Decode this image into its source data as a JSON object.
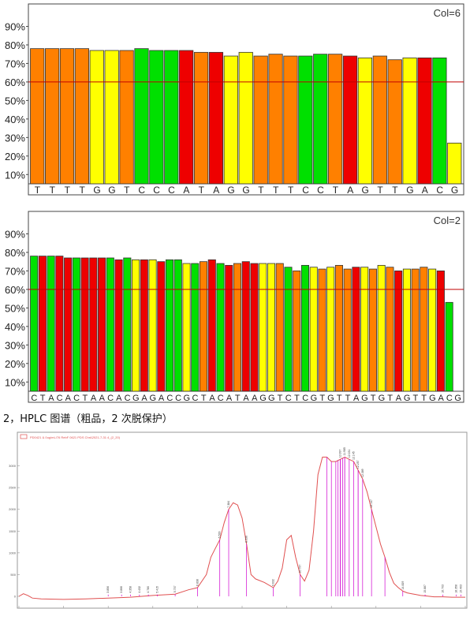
{
  "chart_data": [
    {
      "type": "bar",
      "annotation": "Col=6",
      "threshold": 60,
      "ylim": [
        5,
        100
      ],
      "yticks": [
        "10%",
        "20%",
        "30%",
        "40%",
        "50%",
        "60%",
        "70%",
        "80%",
        "90%"
      ],
      "categories": [
        "T",
        "T",
        "T",
        "T",
        "G",
        "G",
        "T",
        "C",
        "C",
        "C",
        "A",
        "T",
        "A",
        "G",
        "G",
        "T",
        "T",
        "T",
        "C",
        "C",
        "T",
        "A",
        "G",
        "T",
        "T",
        "G",
        "A",
        "C",
        "G"
      ],
      "values": [
        78,
        78,
        78,
        78,
        77,
        77,
        77,
        78,
        77,
        77,
        77,
        76,
        76,
        74,
        76,
        74,
        75,
        74,
        74,
        75,
        75,
        74,
        73,
        74,
        72,
        73,
        73,
        73,
        27
      ],
      "colors": [
        "#ff8000",
        "#ff8000",
        "#ff8000",
        "#ff8000",
        "#ffff00",
        "#ffff00",
        "#ff8000",
        "#00e000",
        "#00e000",
        "#00e000",
        "#ee0000",
        "#ff8000",
        "#ee0000",
        "#ffff00",
        "#ffff00",
        "#ff8000",
        "#ff8000",
        "#ff8000",
        "#00e000",
        "#00e000",
        "#ff8000",
        "#ee0000",
        "#ffff00",
        "#ff8000",
        "#ff8000",
        "#ffff00",
        "#ee0000",
        "#00e000",
        "#ffff00"
      ]
    },
    {
      "type": "bar",
      "annotation": "Col=2",
      "threshold": 60,
      "ylim": [
        5,
        100
      ],
      "yticks": [
        "10%",
        "20%",
        "30%",
        "40%",
        "50%",
        "60%",
        "70%",
        "80%",
        "90%"
      ],
      "categories": [
        "C",
        "T",
        "A",
        "C",
        "A",
        "C",
        "T",
        "A",
        "A",
        "C",
        "A",
        "C",
        "G",
        "A",
        "G",
        "A",
        "C",
        "C",
        "G",
        "C",
        "T",
        "A",
        "C",
        "A",
        "T",
        "A",
        "A",
        "G",
        "G",
        "T",
        "C",
        "T",
        "C",
        "G",
        "T",
        "G",
        "T",
        "T",
        "A",
        "G",
        "T",
        "G",
        "T",
        "A",
        "G",
        "T",
        "T",
        "G",
        "A",
        "C",
        "G"
      ],
      "values": [
        78,
        78,
        78,
        78,
        77,
        77,
        77,
        77,
        77,
        77,
        76,
        77,
        76,
        76,
        76,
        75,
        76,
        76,
        74,
        74,
        75,
        76,
        74,
        73,
        74,
        75,
        74,
        74,
        74,
        74,
        72,
        70,
        73,
        72,
        71,
        72,
        73,
        71,
        72,
        72,
        71,
        73,
        72,
        70,
        71,
        71,
        72,
        71,
        70,
        53,
        0
      ],
      "colors": [
        "#00e000",
        "#ee0000",
        "#00e000",
        "#ee0000",
        "#ee0000",
        "#00e000",
        "#ee0000",
        "#ee0000",
        "#ee0000",
        "#00e000",
        "#ee0000",
        "#00e000",
        "#ffff00",
        "#ee0000",
        "#ffff00",
        "#ee0000",
        "#00e000",
        "#00e000",
        "#ffff00",
        "#00e000",
        "#ff8000",
        "#ee0000",
        "#00e000",
        "#ee0000",
        "#ff8000",
        "#ee0000",
        "#ee0000",
        "#ffff00",
        "#ffff00",
        "#ff8000",
        "#00e000",
        "#ff8000",
        "#00e000",
        "#ffff00",
        "#ff8000",
        "#ffff00",
        "#ff8000",
        "#ff8000",
        "#ee0000",
        "#ffff00",
        "#ff8000",
        "#ffff00",
        "#ff8000",
        "#ee0000",
        "#ffff00",
        "#ff8000",
        "#ff8000",
        "#ffff00",
        "#ee0000",
        "#00e000",
        "#ffff00"
      ]
    },
    {
      "type": "line",
      "title": "",
      "line_color": "#e05050",
      "peak_color": "#d000d0",
      "xlim": [
        0,
        100
      ],
      "ylim": [
        0,
        3500
      ],
      "x": [
        0,
        1,
        2,
        3,
        5,
        10,
        15,
        20,
        25,
        30,
        35,
        38,
        40,
        42,
        43,
        44,
        45,
        46,
        47,
        48,
        49,
        50,
        51,
        52,
        53,
        55,
        57,
        58,
        59,
        60,
        61,
        62,
        63,
        64,
        65,
        66,
        67,
        68,
        69,
        70,
        71,
        72,
        73,
        74,
        75,
        76,
        77,
        78,
        79,
        80,
        81,
        82,
        83,
        84,
        85,
        86,
        87,
        88,
        89,
        90,
        91,
        92,
        93,
        95,
        97,
        100
      ],
      "y": [
        0,
        60,
        20,
        -40,
        -60,
        -70,
        -60,
        -40,
        -20,
        20,
        50,
        150,
        200,
        500,
        900,
        1100,
        1300,
        1700,
        2000,
        2150,
        2100,
        1800,
        1200,
        500,
        400,
        320,
        200,
        350,
        650,
        1300,
        1400,
        900,
        500,
        350,
        600,
        1500,
        2800,
        3200,
        3200,
        3100,
        3100,
        3150,
        3200,
        3150,
        3100,
        2900,
        2700,
        2400,
        2000,
        1600,
        1200,
        900,
        550,
        300,
        200,
        120,
        80,
        60,
        40,
        20,
        10,
        0,
        -10,
        -10,
        -20,
        -20
      ],
      "peaks": [
        20,
        23,
        25,
        27,
        29,
        31,
        35,
        40,
        45,
        47,
        51,
        57,
        63,
        72,
        73,
        74,
        75,
        76,
        77,
        79,
        86,
        91,
        95,
        98,
        99
      ],
      "markers": [
        55,
        56,
        57,
        57.5,
        58,
        58.5,
        59,
        62,
        68
      ]
    }
  ],
  "caption": "2，HPLC 图谱（粗品，2 次脱保护）",
  "hplc_legend_text": "PD0421 & 0ug/mL/76 RebF 0621 PDS ChrA2021-7-31 4_(2_20)",
  "hplc_peak_labels": [
    "3.856",
    "3.866",
    "4.358",
    "4.432",
    "4.780",
    "5.415",
    "5.757",
    "6.838",
    "6.539",
    "7.384",
    "8.536",
    "9.632",
    "10.797",
    "10.997",
    "11.985",
    "12.031",
    "12.145",
    "12.257",
    "12.389",
    "13.147",
    "14.829",
    "15.887",
    "16.703",
    "18.358",
    "19.403"
  ]
}
